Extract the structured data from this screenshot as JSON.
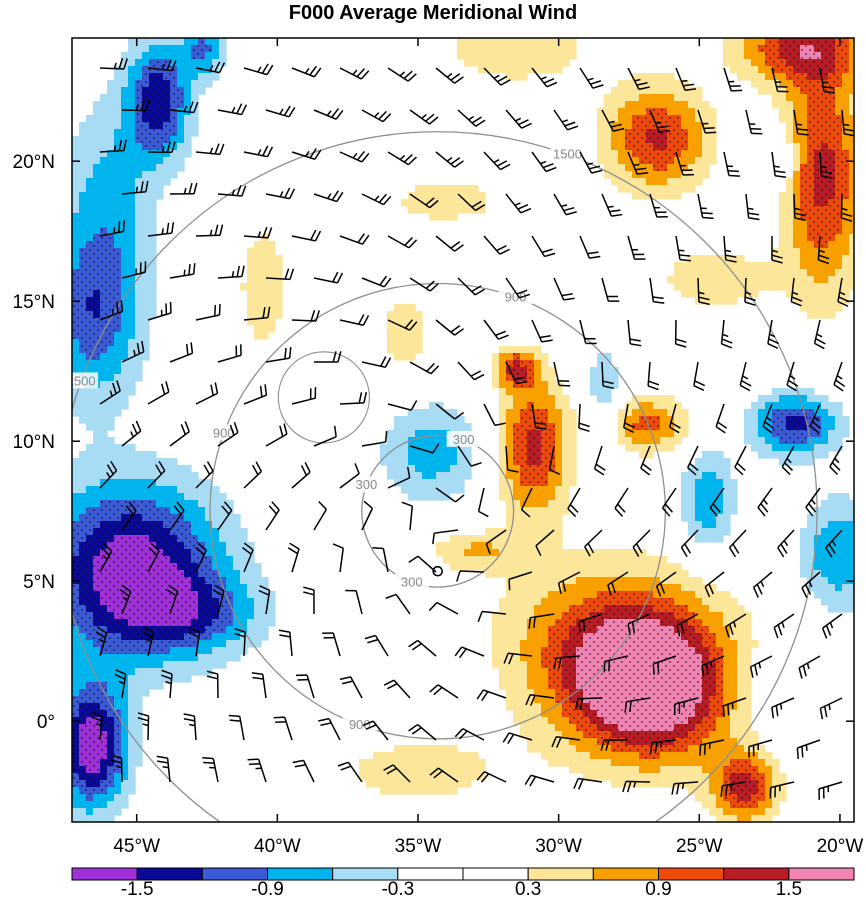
{
  "chart_data": {
    "type": "heatmap",
    "title": "F000 Average Meridional Wind",
    "x_ticks": [
      "45°W",
      "40°W",
      "35°W",
      "30°W",
      "25°W",
      "20°W"
    ],
    "x_values": [
      -45,
      -40,
      -35,
      -30,
      -25,
      -20
    ],
    "y_ticks": [
      "0°",
      "5°N",
      "10°N",
      "15°N",
      "20°N"
    ],
    "y_values": [
      0,
      5,
      10,
      15,
      20
    ],
    "xlim": [
      -47.3,
      -19.5
    ],
    "ylim": [
      -3.6,
      24.4
    ],
    "center": {
      "lon": -34.3,
      "lat": 7.5
    },
    "range_rings": [
      {
        "radius_km": 300,
        "label": "300"
      },
      {
        "radius_km": 900,
        "label": "900"
      },
      {
        "radius_km": 1500,
        "label": "1500"
      }
    ],
    "colorbar": {
      "levels": [
        -1.8,
        -1.5,
        -1.2,
        -0.9,
        -0.6,
        -0.3,
        0,
        0.3,
        0.6,
        0.9,
        1.2,
        1.5,
        1.8
      ],
      "labels": [
        "-1.5",
        "-0.9",
        "-0.3",
        "0.3",
        "0.9",
        "1.5"
      ],
      "label_values": [
        -1.5,
        -0.9,
        -0.3,
        0.3,
        0.9,
        1.5
      ],
      "colors": [
        "#a030d8",
        "#0a0a96",
        "#3a5ad6",
        "#00b4ee",
        "#a8dcf4",
        "#ffffff",
        "#ffffff",
        "#fbe69a",
        "#f7a000",
        "#ee4a0a",
        "#b81c24",
        "#f284b4"
      ]
    },
    "features": [
      {
        "lon": -27.0,
        "lat": 1.6,
        "sx": 2.2,
        "sy": 1.8,
        "v": 1.85
      },
      {
        "lon": -28.6,
        "lat": 3.4,
        "sx": 2.8,
        "sy": 2.0,
        "v": 0.6
      },
      {
        "lon": -26.2,
        "lat": 0.1,
        "sx": 2.0,
        "sy": 1.6,
        "v": 0.5
      },
      {
        "lon": -30.9,
        "lat": 9.8,
        "sx": 0.9,
        "sy": 1.7,
        "v": 1.3
      },
      {
        "lon": -31.5,
        "lat": 12.6,
        "sx": 0.55,
        "sy": 0.5,
        "v": 1.1
      },
      {
        "lon": -26.5,
        "lat": 20.8,
        "sx": 1.3,
        "sy": 1.3,
        "v": 1.25
      },
      {
        "lon": -20.6,
        "lat": 19.5,
        "sx": 1.0,
        "sy": 3.0,
        "v": 1.3
      },
      {
        "lon": -21.5,
        "lat": 24.0,
        "sx": 1.6,
        "sy": 0.9,
        "v": 1.2
      },
      {
        "lon": -23.4,
        "lat": -2.4,
        "sx": 0.8,
        "sy": 0.9,
        "v": 1.3
      },
      {
        "lon": -26.9,
        "lat": 10.6,
        "sx": 1.1,
        "sy": 0.7,
        "v": 1.0
      },
      {
        "lon": -24.4,
        "lat": 15.8,
        "sx": 1.5,
        "sy": 0.8,
        "v": 0.55
      },
      {
        "lon": -33.0,
        "lat": 6.1,
        "sx": 1.1,
        "sy": 0.5,
        "v": 0.6
      },
      {
        "lon": -35.5,
        "lat": 13.8,
        "sx": 0.8,
        "sy": 1.2,
        "v": 0.45
      },
      {
        "lon": -40.5,
        "lat": 15.5,
        "sx": 0.7,
        "sy": 1.8,
        "v": 0.5
      },
      {
        "lon": -31.5,
        "lat": 24.0,
        "sx": 2.4,
        "sy": 1.1,
        "v": 0.45
      },
      {
        "lon": -34.0,
        "lat": 18.6,
        "sx": 2.0,
        "sy": 0.8,
        "v": 0.4
      },
      {
        "lon": -35.0,
        "lat": -1.8,
        "sx": 2.8,
        "sy": 1.2,
        "v": 0.4
      },
      {
        "lon": -45.2,
        "lat": 5.4,
        "sx": 2.3,
        "sy": 2.2,
        "v": -1.75
      },
      {
        "lon": -43.0,
        "lat": 3.8,
        "sx": 1.8,
        "sy": 1.0,
        "v": -0.7
      },
      {
        "lon": -46.6,
        "lat": -0.9,
        "sx": 0.9,
        "sy": 1.6,
        "v": -1.75
      },
      {
        "lon": -46.5,
        "lat": 14.5,
        "sx": 1.2,
        "sy": 2.2,
        "v": -1.1
      },
      {
        "lon": -44.2,
        "lat": 22.2,
        "sx": 0.8,
        "sy": 1.5,
        "v": -1.4
      },
      {
        "lon": -42.6,
        "lat": 24.0,
        "sx": 0.5,
        "sy": 0.7,
        "v": -0.9
      },
      {
        "lon": -46.0,
        "lat": 19.0,
        "sx": 1.2,
        "sy": 2.5,
        "v": -0.6
      },
      {
        "lon": -21.6,
        "lat": 10.6,
        "sx": 1.1,
        "sy": 0.8,
        "v": -1.3
      },
      {
        "lon": -24.7,
        "lat": 7.9,
        "sx": 0.7,
        "sy": 1.3,
        "v": -0.85
      },
      {
        "lon": -34.5,
        "lat": 9.6,
        "sx": 1.3,
        "sy": 1.3,
        "v": -0.75
      },
      {
        "lon": -28.4,
        "lat": 11.4,
        "sx": 0.5,
        "sy": 1.7,
        "v": -0.55
      },
      {
        "lon": -22.2,
        "lat": 20.0,
        "sx": 0.5,
        "sy": 0.7,
        "v": -0.6
      },
      {
        "lon": -22.0,
        "lat": 1.0,
        "sx": 1.6,
        "sy": 1.2,
        "v": -0.4
      },
      {
        "lon": -20.0,
        "lat": 6.0,
        "sx": 1.0,
        "sy": 1.4,
        "v": -0.9
      }
    ]
  }
}
